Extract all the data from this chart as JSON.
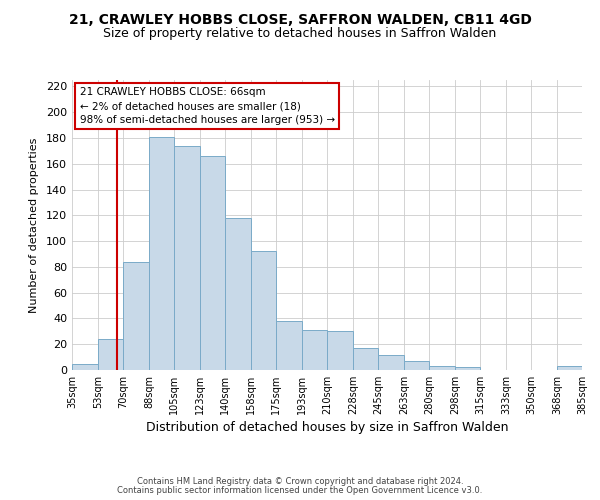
{
  "title": "21, CRAWLEY HOBBS CLOSE, SAFFRON WALDEN, CB11 4GD",
  "subtitle": "Size of property relative to detached houses in Saffron Walden",
  "xlabel": "Distribution of detached houses by size in Saffron Walden",
  "ylabel": "Number of detached properties",
  "bar_edges": [
    35,
    53,
    70,
    88,
    105,
    123,
    140,
    158,
    175,
    193,
    210,
    228,
    245,
    263,
    280,
    298,
    315,
    333,
    350,
    368,
    385
  ],
  "bar_heights": [
    5,
    24,
    84,
    181,
    174,
    166,
    118,
    92,
    38,
    31,
    30,
    17,
    12,
    7,
    3,
    2,
    0,
    0,
    0,
    3
  ],
  "bar_color": "#c8d9e8",
  "bar_edge_color": "#7aaac8",
  "property_line_x": 66,
  "property_line_color": "#cc0000",
  "annotation_line1": "21 CRAWLEY HOBBS CLOSE: 66sqm",
  "annotation_line2": "← 2% of detached houses are smaller (18)",
  "annotation_line3": "98% of semi-detached houses are larger (953) →",
  "annotation_box_color": "#ffffff",
  "annotation_box_edge_color": "#cc0000",
  "ylim": [
    0,
    225
  ],
  "yticks": [
    0,
    20,
    40,
    60,
    80,
    100,
    120,
    140,
    160,
    180,
    200,
    220
  ],
  "tick_labels": [
    "35sqm",
    "53sqm",
    "70sqm",
    "88sqm",
    "105sqm",
    "123sqm",
    "140sqm",
    "158sqm",
    "175sqm",
    "193sqm",
    "210sqm",
    "228sqm",
    "245sqm",
    "263sqm",
    "280sqm",
    "298sqm",
    "315sqm",
    "333sqm",
    "350sqm",
    "368sqm",
    "385sqm"
  ],
  "footer_line1": "Contains HM Land Registry data © Crown copyright and database right 2024.",
  "footer_line2": "Contains public sector information licensed under the Open Government Licence v3.0.",
  "background_color": "#ffffff",
  "grid_color": "#cccccc",
  "title_fontsize": 10,
  "subtitle_fontsize": 9,
  "ylabel_fontsize": 8,
  "xlabel_fontsize": 9
}
